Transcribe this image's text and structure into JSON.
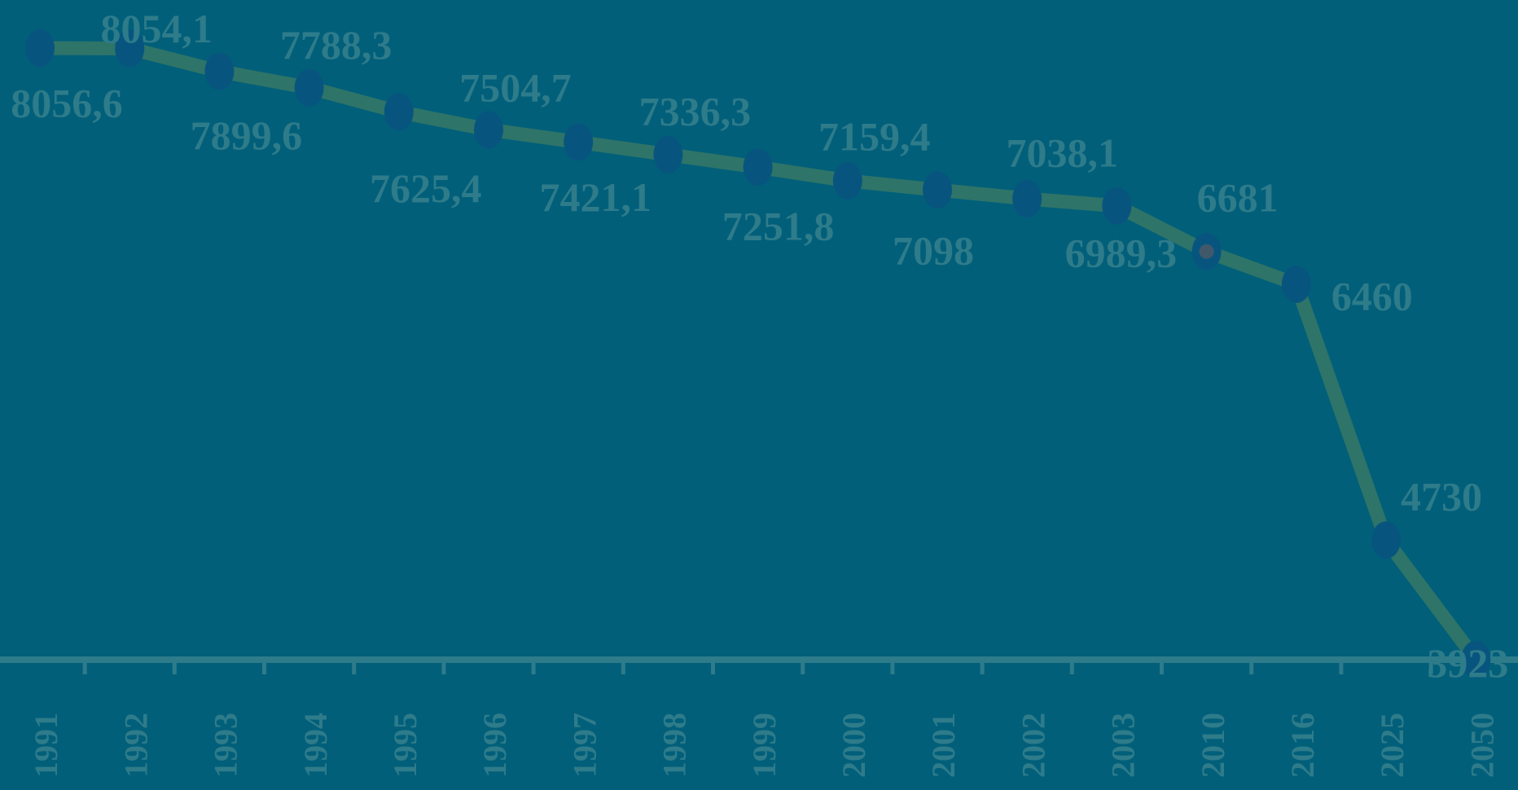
{
  "chart_data": {
    "type": "line",
    "x": [
      "1991",
      "1992",
      "1993",
      "1994",
      "1995",
      "1996",
      "1997",
      "1998",
      "1999",
      "2000",
      "2001",
      "2002",
      "2003",
      "2010",
      "2016",
      "2025",
      "2050"
    ],
    "values": [
      8056.6,
      8054.1,
      7899.6,
      7788.3,
      7625.4,
      7504.7,
      7421.1,
      7336.3,
      7251.8,
      7159.4,
      7098,
      7038.1,
      6989.3,
      6681,
      6460,
      4730,
      3923
    ],
    "labels": [
      "8056,6",
      "8054,1",
      "7899,6",
      "7788,3",
      "7625,4",
      "7504,7",
      "7421,1",
      "7336,3",
      "7251,8",
      "7159,4",
      "7098",
      "7038,1",
      "6989,3",
      "6681",
      "6460",
      "4730",
      "3923"
    ],
    "title": "",
    "xlabel": "",
    "ylabel": "",
    "grid": false,
    "legend": "none"
  },
  "colors": {
    "background": "#015f7a",
    "line": "#2e7468",
    "marker": "#07557e",
    "marker_highlight": "#41586a",
    "text": "#2e7b8a",
    "axis": "#2e7b8a"
  }
}
